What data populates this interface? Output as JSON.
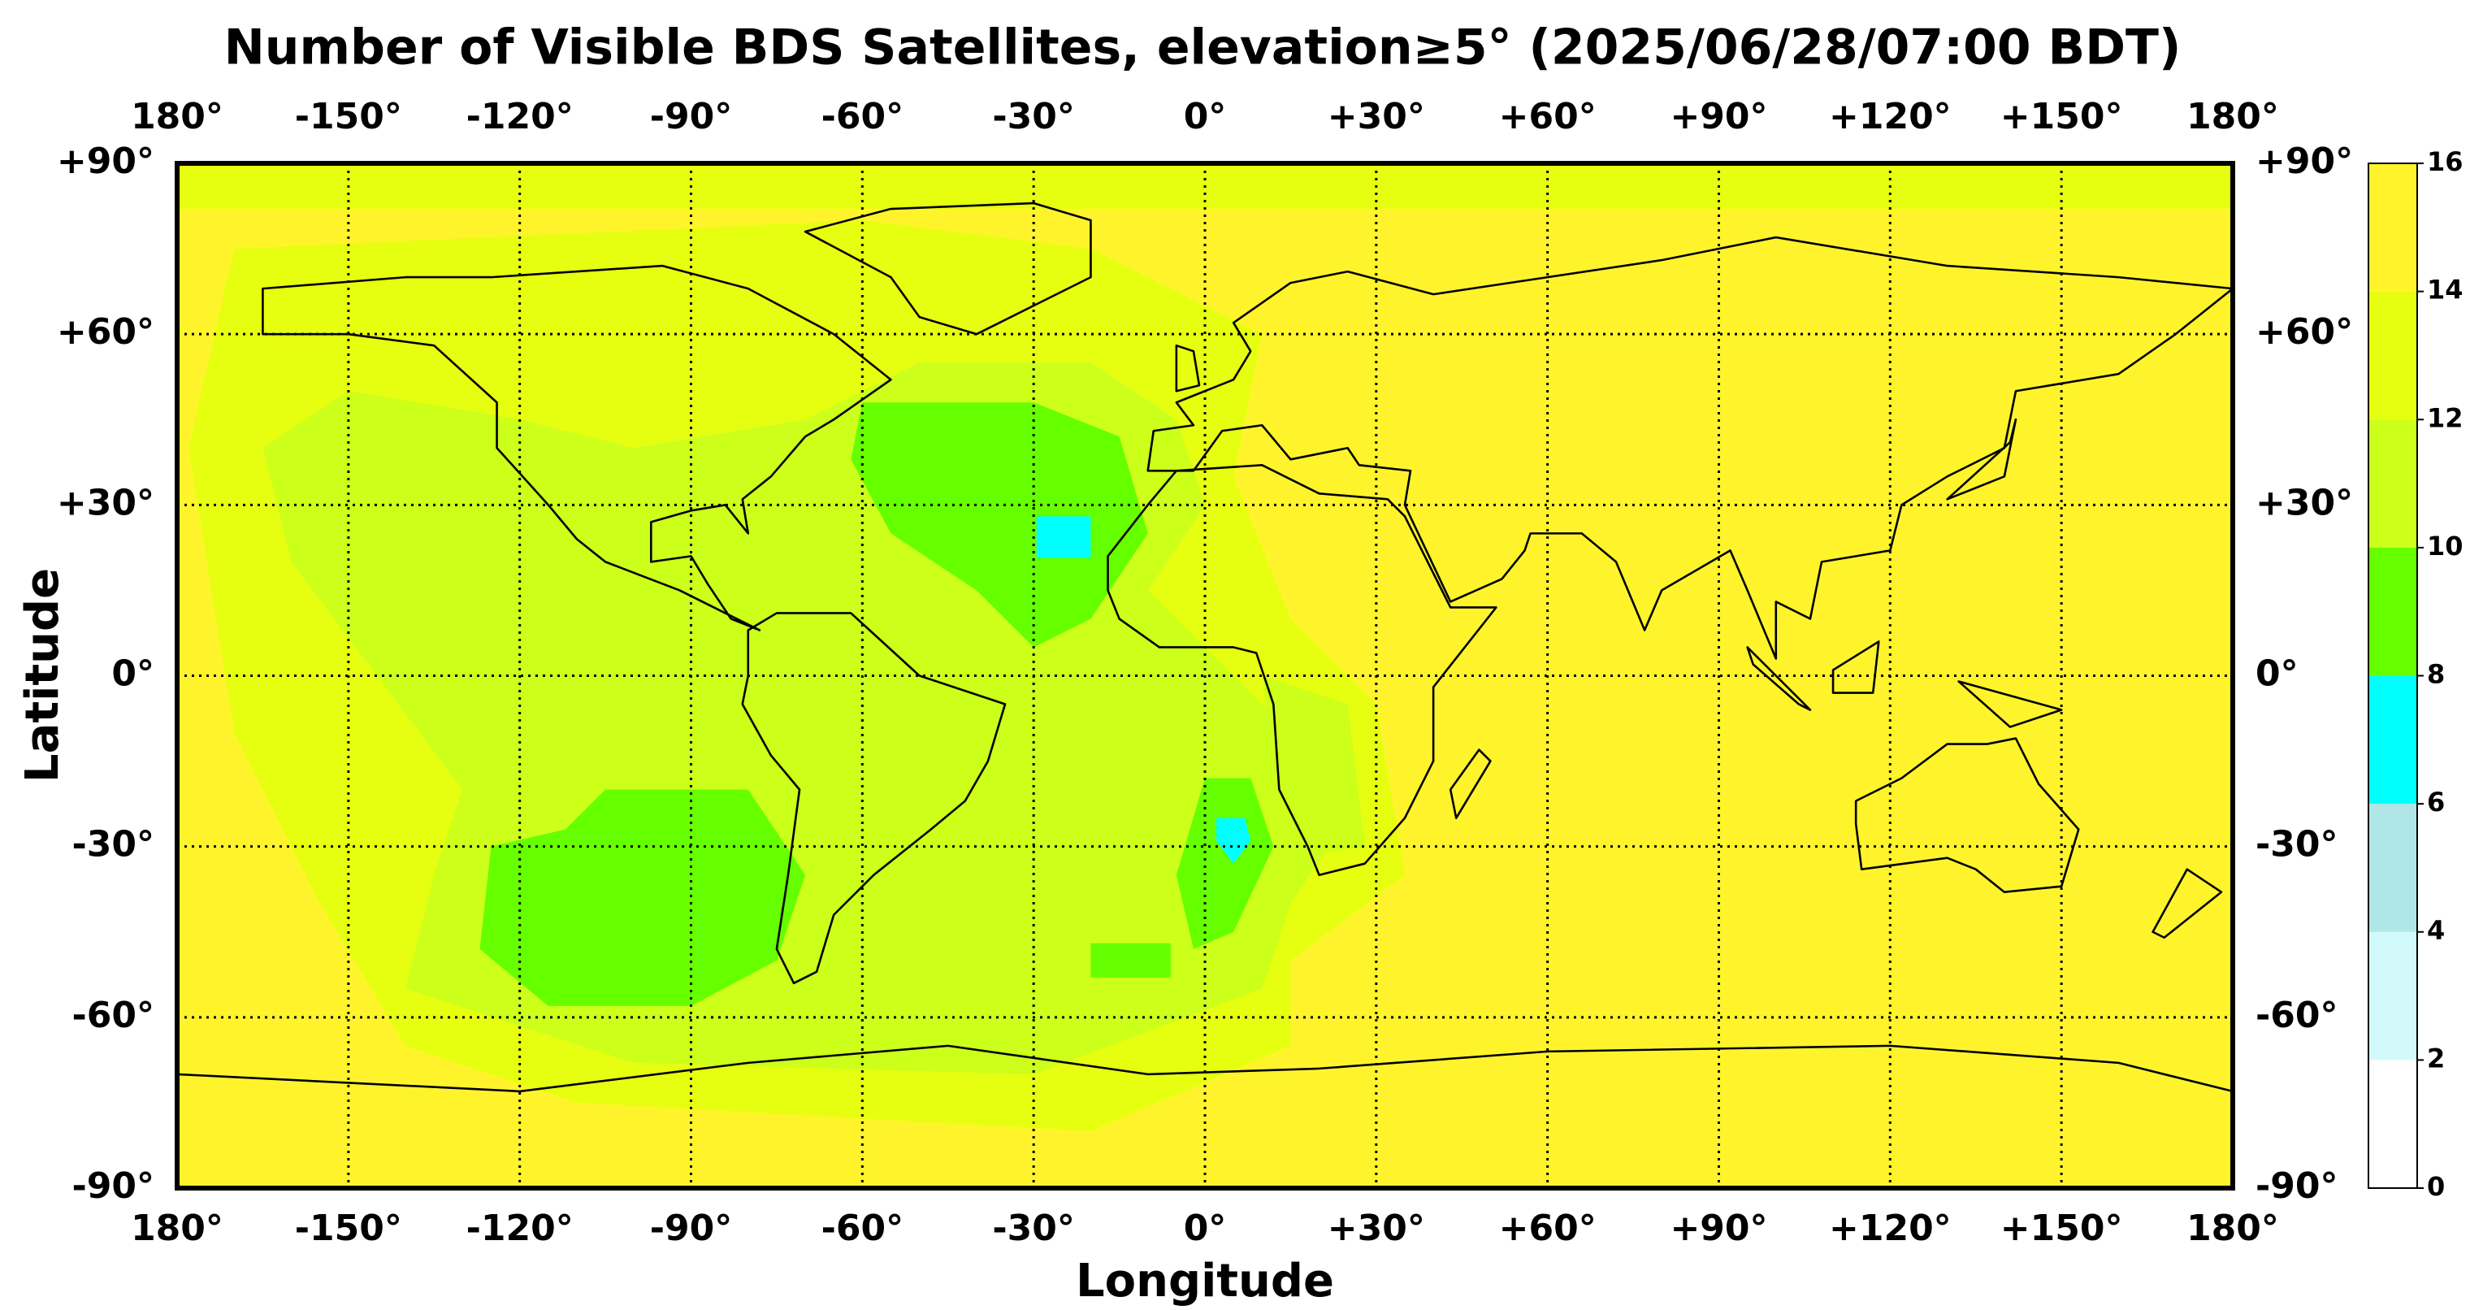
{
  "chart_data": {
    "type": "heatmap",
    "title": "Number of Visible BDS Satellites, elevation≥5° (2025/06/28/07:00 BDT)",
    "x_label": "Longitude",
    "y_label": "Latitude",
    "xlim": [
      -180,
      180
    ],
    "ylim": [
      -90,
      90
    ],
    "xticks": [
      {
        "value": -180,
        "label": "180°"
      },
      {
        "value": -150,
        "label": "-150°"
      },
      {
        "value": -120,
        "label": "-120°"
      },
      {
        "value": -90,
        "label": "-90°"
      },
      {
        "value": -60,
        "label": "-60°"
      },
      {
        "value": -30,
        "label": "-30°"
      },
      {
        "value": 0,
        "label": "0°"
      },
      {
        "value": 30,
        "label": "+30°"
      },
      {
        "value": 60,
        "label": "+60°"
      },
      {
        "value": 90,
        "label": "+90°"
      },
      {
        "value": 120,
        "label": "+120°"
      },
      {
        "value": 150,
        "label": "+150°"
      },
      {
        "value": 180,
        "label": "180°"
      }
    ],
    "yticks": [
      {
        "value": 90,
        "label": "+90°"
      },
      {
        "value": 60,
        "label": "+60°"
      },
      {
        "value": 30,
        "label": "+30°"
      },
      {
        "value": 0,
        "label": "0°"
      },
      {
        "value": -30,
        "label": "-30°"
      },
      {
        "value": -60,
        "label": "-60°"
      },
      {
        "value": -90,
        "label": "-90°"
      }
    ],
    "grid": true,
    "background_value": 15,
    "regions": [
      {
        "value": 13,
        "lon": [
          -180,
          180,
          180,
          -180
        ],
        "lat": [
          90,
          90,
          82,
          82
        ]
      },
      {
        "value": 13,
        "lon": [
          -170,
          -60,
          -20,
          10,
          5,
          15,
          30,
          35,
          15,
          15,
          -20,
          -110,
          -140,
          -155,
          -170,
          -178
        ],
        "lat": [
          75,
          80,
          75,
          60,
          35,
          10,
          -5,
          -35,
          -50,
          -65,
          -80,
          -75,
          -65,
          -40,
          -10,
          40
        ]
      },
      {
        "value": 11,
        "lon": [
          -150,
          -120,
          -100,
          -70,
          -50,
          -20,
          -5,
          0,
          -10,
          0,
          10,
          20,
          25,
          15,
          10,
          -30,
          -100,
          -140,
          -135,
          -130,
          -145,
          -160,
          -165
        ],
        "lat": [
          50,
          45,
          40,
          45,
          55,
          55,
          45,
          30,
          15,
          5,
          -5,
          -10,
          -25,
          -40,
          -55,
          -70,
          -68,
          -55,
          -35,
          -20,
          0,
          20,
          40
        ]
      },
      {
        "value": 11,
        "lon": [
          10,
          25,
          28,
          15
        ],
        "lat": [
          0,
          -5,
          -30,
          -32
        ]
      },
      {
        "value": 9,
        "lon": [
          -60,
          -30,
          -15,
          -10,
          -20,
          -30,
          -40,
          -55,
          -62
        ],
        "lat": [
          48,
          48,
          42,
          25,
          10,
          5,
          15,
          25,
          38
        ]
      },
      {
        "value": 9,
        "lon": [
          -105,
          -80,
          -70,
          -75,
          -90,
          -115,
          -127,
          -125,
          -112
        ],
        "lat": [
          -20,
          -20,
          -35,
          -50,
          -58,
          -58,
          -48,
          -30,
          -27
        ]
      },
      {
        "value": 9,
        "lon": [
          0,
          8,
          12,
          5,
          -2,
          -5
        ],
        "lat": [
          -18,
          -18,
          -30,
          -45,
          -48,
          -35
        ]
      },
      {
        "value": 9,
        "lon": [
          -20,
          -6,
          -6,
          -20
        ],
        "lat": [
          -47,
          -47,
          -53,
          -53
        ]
      },
      {
        "value": 7,
        "lon": [
          -29.5,
          -20,
          -20,
          -29.5
        ],
        "lat": [
          28,
          28,
          20.7,
          20.7
        ]
      },
      {
        "value": 7,
        "lon": [
          2,
          7,
          8,
          5,
          2
        ],
        "lat": [
          -25,
          -25,
          -29,
          -33,
          -29
        ]
      }
    ],
    "colorbar": {
      "ticks": [
        0,
        2,
        4,
        6,
        8,
        10,
        12,
        14,
        16
      ],
      "colors": [
        "#ffffff",
        "#d2fafa",
        "#b0e6e6",
        "#00ffff",
        "#66ff00",
        "#ccff1a",
        "#e6ff10",
        "#fff42c"
      ]
    }
  }
}
